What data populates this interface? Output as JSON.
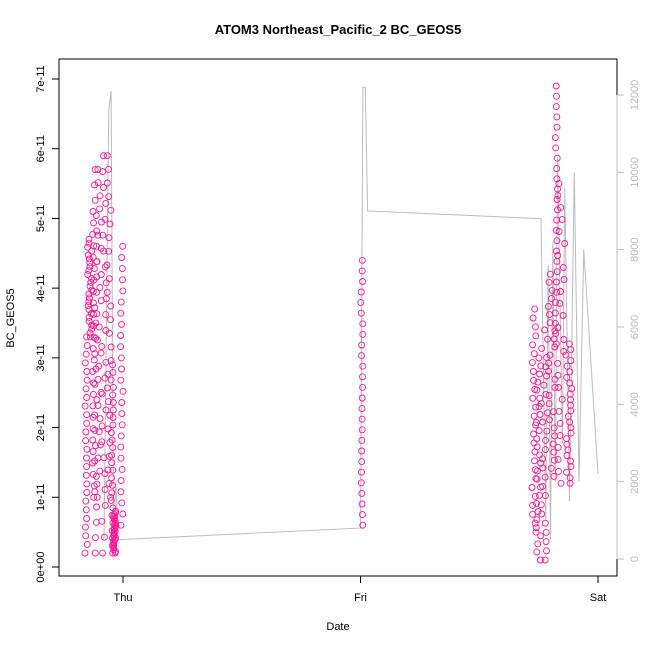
{
  "chart_data": {
    "type": "scatter",
    "title": "ATOM3 Northeast_Pacific_2 BC_GEOS5",
    "xlabel": "Date",
    "ylabel": "BC_GEOS5",
    "x_ticks": [
      "Thu",
      "Fri",
      "Sat"
    ],
    "y_ticks": [
      "0e+00",
      "1e-11",
      "2e-11",
      "3e-11",
      "4e-11",
      "5e-11",
      "6e-11",
      "7e-11"
    ],
    "y_right_ticks": [
      "0",
      "2000",
      "4000",
      "6000",
      "8000",
      "10000",
      "12000"
    ],
    "x_range_days": [
      -0.2,
      2.05
    ],
    "y_range": [
      0,
      7.2e-11
    ],
    "y_right_range": [
      -500,
      12500
    ],
    "point_color": "#ff1493",
    "line_color": "#bbbbbb",
    "series": [
      {
        "kind": "points",
        "segments": [
          {
            "x": [
              -0.16,
              -0.15
            ],
            "y": [
              2e-12,
              3.3e-11
            ]
          },
          {
            "x": [
              -0.15,
              -0.13
            ],
            "y": [
              3.3e-11,
              4.7e-11
            ]
          },
          {
            "x": [
              -0.13,
              -0.12
            ],
            "y": [
              1e-11,
              5.1e-11
            ]
          },
          {
            "x": [
              -0.12,
              -0.11
            ],
            "y": [
              2e-12,
              5.7e-11
            ]
          },
          {
            "x": [
              -0.11,
              -0.09
            ],
            "y": [
              1e-11,
              5.7e-11
            ]
          },
          {
            "x": [
              -0.09,
              -0.07
            ],
            "y": [
              2e-12,
              5.9e-11
            ]
          },
          {
            "x": [
              -0.07,
              -0.05
            ],
            "y": [
              1e-11,
              5.9e-11
            ]
          },
          {
            "x": [
              -0.05,
              -0.04
            ],
            "y": [
              2e-12,
              2.9e-11
            ]
          },
          {
            "x": [
              -0.04,
              -0.03
            ],
            "y": [
              2e-12,
              8e-12
            ]
          },
          {
            "x": [
              -0.01,
              0.0
            ],
            "y": [
              6e-12,
              4.6e-11
            ]
          },
          {
            "x": [
              1.0,
              1.01
            ],
            "y": [
              6e-12,
              4.4e-11
            ]
          },
          {
            "x": [
              1.72,
              1.74
            ],
            "y": [
              5e-12,
              3.7e-11
            ]
          },
          {
            "x": [
              1.74,
              1.76
            ],
            "y": [
              1e-12,
              3e-11
            ]
          },
          {
            "x": [
              1.76,
              1.79
            ],
            "y": [
              1e-12,
              3.4e-11
            ]
          },
          {
            "x": [
              1.79,
              1.82
            ],
            "y": [
              1.3e-11,
              4.2e-11
            ]
          },
          {
            "x": [
              1.82,
              1.83
            ],
            "y": [
              3.2e-11,
              6.9e-11
            ]
          },
          {
            "x": [
              1.83,
              1.86
            ],
            "y": [
              1.2e-11,
              5.5e-11
            ]
          },
          {
            "x": [
              1.86,
              1.89
            ],
            "y": [
              1.2e-11,
              3.2e-11
            ]
          }
        ]
      },
      {
        "kind": "line",
        "axis": "right",
        "x": [
          -0.08,
          -0.06,
          -0.05,
          -0.04,
          -0.03,
          -0.02,
          1.0,
          1.01,
          1.02,
          1.03,
          1.04,
          1.76,
          1.78,
          1.79,
          1.8,
          1.81,
          1.82,
          1.83,
          1.85,
          1.86,
          1.88,
          1.9,
          1.92,
          1.94,
          2.0
        ],
        "y": [
          500,
          11600,
          12100,
          500,
          2000,
          500,
          800,
          12200,
          12200,
          9000,
          9000,
          8800,
          1000,
          7600,
          500,
          8200,
          2000,
          10400,
          3000,
          9600,
          1500,
          10000,
          2000,
          8000,
          2200
        ]
      }
    ]
  }
}
